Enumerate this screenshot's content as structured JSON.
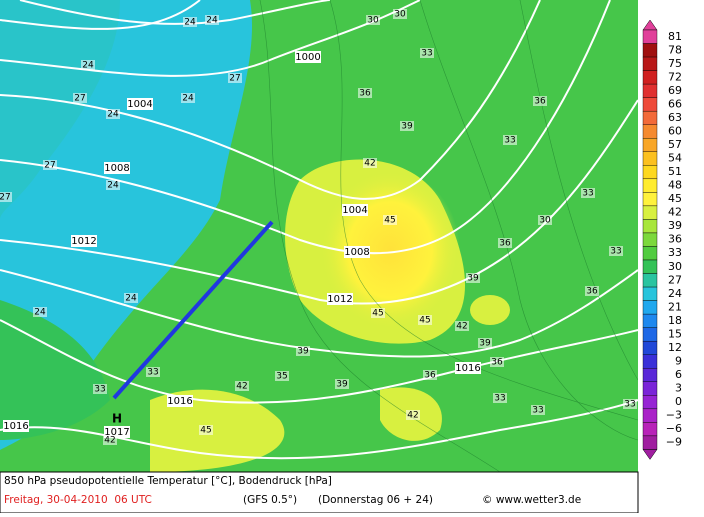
{
  "map": {
    "isobar_labels": [
      "1000",
      "1004",
      "1008",
      "1012",
      "1004",
      "1008",
      "1012",
      "1016",
      "1016",
      "1016",
      "1017"
    ],
    "high_label": "H",
    "temperature_labels": [
      "24",
      "24",
      "30",
      "30",
      "24",
      "27",
      "24",
      "24",
      "27",
      "27",
      "24",
      "27",
      "24",
      "33",
      "33",
      "36",
      "36",
      "39",
      "33",
      "42",
      "45",
      "30",
      "36",
      "33",
      "39",
      "36",
      "45",
      "45",
      "42",
      "39",
      "39",
      "36",
      "35",
      "39",
      "33",
      "36",
      "33",
      "33",
      "42",
      "24",
      "33",
      "33",
      "42",
      "45",
      "42"
    ]
  },
  "legend": {
    "ticks": [
      81,
      78,
      75,
      72,
      69,
      66,
      63,
      60,
      57,
      54,
      51,
      48,
      45,
      42,
      39,
      36,
      33,
      30,
      27,
      24,
      21,
      18,
      15,
      12,
      9,
      6,
      3,
      0,
      {
        "value": -3,
        "label": "−3"
      },
      {
        "value": -6,
        "label": "−6"
      },
      {
        "value": -9,
        "label": "−9"
      }
    ],
    "colors": [
      "#e0409a",
      "#a01010",
      "#b81818",
      "#d02020",
      "#e03030",
      "#ee4a3a",
      "#f26a3a",
      "#f58a30",
      "#f8a628",
      "#fbc020",
      "#fdd820",
      "#ffec30",
      "#fff23c",
      "#d8f040",
      "#a8e63c",
      "#7cd83c",
      "#52cc40",
      "#34c258",
      "#2ac4a0",
      "#28c4dc",
      "#20a8ee",
      "#1e88ee",
      "#1e68e6",
      "#2048d8",
      "#3a30d8",
      "#5a28d8",
      "#7a24d8",
      "#9624d4",
      "#aa22c8",
      "#b822b8",
      "#a01ea0"
    ]
  },
  "footer": {
    "title": "850 hPa pseudopotentielle Temperatur [°C], Bodendruck [hPa]",
    "date": "Freitag, 30-04-2010  06 UTC",
    "model": "(GFS 0.5°)",
    "forecast": "(Donnerstag 06 + 24)",
    "source": "© www.wetter3.de"
  }
}
